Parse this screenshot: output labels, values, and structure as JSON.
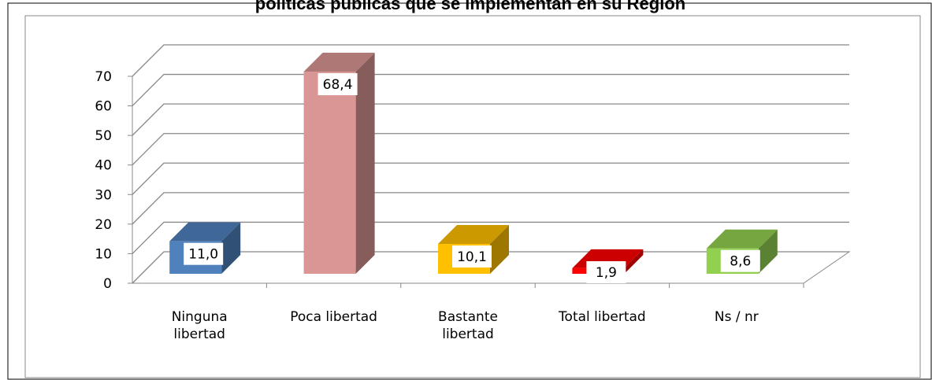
{
  "chart_data": {
    "type": "bar3d",
    "title": "políticas públicas que se implementan en su Región",
    "categories": [
      "Ninguna libertad",
      "Poca libertad",
      "Bastante libertad",
      "Total libertad",
      "Ns / nr"
    ],
    "values": [
      11.0,
      68.4,
      10.1,
      1.9,
      8.6
    ],
    "value_labels": [
      "11,0",
      "68,4",
      "10,1",
      "1,9",
      "8,6"
    ],
    "colors": [
      "#4f81bd",
      "#d99694",
      "#ffc000",
      "#ff0000",
      "#92d050"
    ],
    "ylim": [
      0,
      70
    ],
    "yticks": [
      0,
      10,
      20,
      30,
      40,
      50,
      60,
      70
    ],
    "grid": true
  }
}
